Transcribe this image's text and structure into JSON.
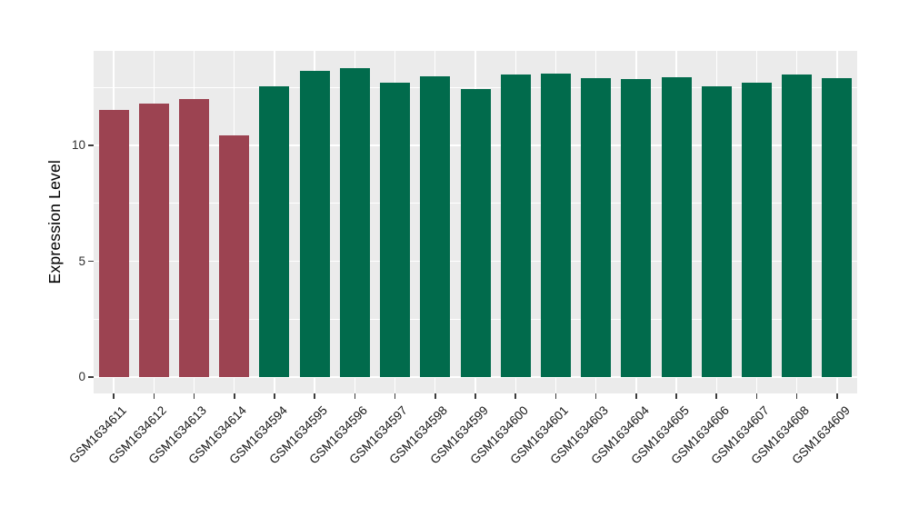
{
  "chart_data": {
    "type": "bar",
    "title": "",
    "xlabel": "",
    "ylabel": "Expression Level",
    "ylim": [
      -0.7,
      14.08
    ],
    "yticks": [
      0,
      5,
      10
    ],
    "y_minor_gridlines": [
      2.5,
      7.5,
      12.5
    ],
    "grid": true,
    "legend": "none",
    "categories": [
      "GSM1634611",
      "GSM1634612",
      "GSM1634613",
      "GSM1634614",
      "GSM1634594",
      "GSM1634595",
      "GSM1634596",
      "GSM1634597",
      "GSM1634598",
      "GSM1634599",
      "GSM1634600",
      "GSM1634601",
      "GSM1634603",
      "GSM1634604",
      "GSM1634605",
      "GSM1634606",
      "GSM1634607",
      "GSM1634608",
      "GSM1634609"
    ],
    "values": [
      11.55,
      11.8,
      12.0,
      10.45,
      12.55,
      13.2,
      13.35,
      12.7,
      13.0,
      12.45,
      13.05,
      13.1,
      12.9,
      12.85,
      12.95,
      12.55,
      12.7,
      13.05,
      12.9
    ],
    "bar_color_keys": [
      "maroon",
      "maroon",
      "maroon",
      "maroon",
      "green",
      "green",
      "green",
      "green",
      "green",
      "green",
      "green",
      "green",
      "green",
      "green",
      "green",
      "green",
      "green",
      "green",
      "green"
    ],
    "colors": {
      "maroon": "#9C4351",
      "green": "#016B4C"
    },
    "panel_background": "#EBEBEB",
    "grid_color": "#FFFFFF",
    "figure_background": "#FFFFFF",
    "tick_mark_color": "#3c3c3c",
    "x_label_angle_deg": 45
  }
}
